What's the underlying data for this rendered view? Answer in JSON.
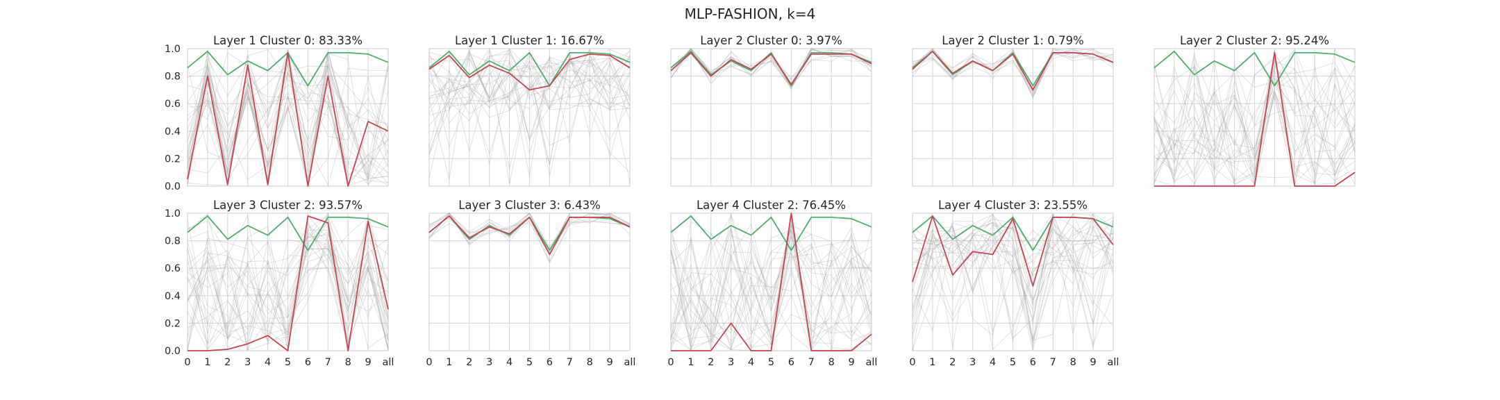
{
  "suptitle": "MLP-FASHION, k=4",
  "colors": {
    "reference": "#4caf6a",
    "cluster_mean": "#c84450",
    "samples": "#9a9a9a",
    "grid": "#d9d9d9",
    "frame": "#cccccc"
  },
  "chart_data": [
    {
      "type": "line",
      "title": "Layer 1 Cluster 0: 83.33%",
      "x": [
        "0",
        "1",
        "2",
        "3",
        "4",
        "5",
        "6",
        "7",
        "8",
        "9",
        "all"
      ],
      "ylim": [
        0,
        1
      ],
      "yticks": [
        "0.0",
        "0.2",
        "0.4",
        "0.6",
        "0.8",
        "1.0"
      ],
      "grid": true,
      "series": [
        {
          "values": [
            0.86,
            0.98,
            0.81,
            0.91,
            0.84,
            0.97,
            0.73,
            0.97,
            0.97,
            0.96,
            0.9
          ]
        },
        {
          "values": [
            0.05,
            0.8,
            0.01,
            0.88,
            0.01,
            0.97,
            0.0,
            0.8,
            0.0,
            0.47,
            0.4
          ]
        }
      ]
    },
    {
      "type": "line",
      "title": "Layer 1 Cluster 1: 16.67%",
      "x": [
        "0",
        "1",
        "2",
        "3",
        "4",
        "5",
        "6",
        "7",
        "8",
        "9",
        "all"
      ],
      "ylim": [
        0,
        1
      ],
      "yticks": [],
      "grid": true,
      "series": [
        {
          "values": [
            0.86,
            0.98,
            0.81,
            0.91,
            0.84,
            0.97,
            0.73,
            0.97,
            0.97,
            0.96,
            0.9
          ]
        },
        {
          "values": [
            0.85,
            0.95,
            0.79,
            0.88,
            0.82,
            0.7,
            0.73,
            0.92,
            0.96,
            0.95,
            0.86
          ]
        }
      ]
    },
    {
      "type": "line",
      "title": "Layer 2 Cluster 0: 3.97%",
      "x": [
        "0",
        "1",
        "2",
        "3",
        "4",
        "5",
        "6",
        "7",
        "8",
        "9",
        "all"
      ],
      "ylim": [
        0,
        1
      ],
      "yticks": [],
      "grid": true,
      "series": [
        {
          "values": [
            0.86,
            0.98,
            0.81,
            0.91,
            0.84,
            0.97,
            0.73,
            0.97,
            0.97,
            0.96,
            0.9
          ]
        },
        {
          "values": [
            0.84,
            0.97,
            0.8,
            0.92,
            0.85,
            0.96,
            0.74,
            0.96,
            0.96,
            0.96,
            0.89
          ]
        }
      ]
    },
    {
      "type": "line",
      "title": "Layer 2 Cluster 1: 0.79%",
      "x": [
        "0",
        "1",
        "2",
        "3",
        "4",
        "5",
        "6",
        "7",
        "8",
        "9",
        "all"
      ],
      "ylim": [
        0,
        1
      ],
      "yticks": [],
      "grid": true,
      "series": [
        {
          "values": [
            0.86,
            0.98,
            0.81,
            0.91,
            0.84,
            0.97,
            0.73,
            0.97,
            0.97,
            0.96,
            0.9
          ]
        },
        {
          "values": [
            0.85,
            0.98,
            0.82,
            0.91,
            0.84,
            0.96,
            0.7,
            0.97,
            0.97,
            0.96,
            0.9
          ]
        }
      ]
    },
    {
      "type": "line",
      "title": "Layer 2 Cluster 2: 95.24%",
      "x": [
        "0",
        "1",
        "2",
        "3",
        "4",
        "5",
        "6",
        "7",
        "8",
        "9",
        "all"
      ],
      "ylim": [
        0,
        1
      ],
      "yticks": [],
      "grid": true,
      "series": [
        {
          "values": [
            0.86,
            0.98,
            0.81,
            0.91,
            0.84,
            0.97,
            0.73,
            0.97,
            0.97,
            0.96,
            0.9
          ]
        },
        {
          "values": [
            0.0,
            0.0,
            0.0,
            0.0,
            0.0,
            0.0,
            0.97,
            0.0,
            0.0,
            0.0,
            0.1
          ]
        }
      ]
    },
    {
      "type": "line",
      "title": "Layer 3 Cluster 2: 93.57%",
      "x": [
        "0",
        "1",
        "2",
        "3",
        "4",
        "5",
        "6",
        "7",
        "8",
        "9",
        "all"
      ],
      "ylim": [
        0,
        1
      ],
      "yticks": [
        "0.0",
        "0.2",
        "0.4",
        "0.6",
        "0.8",
        "1.0"
      ],
      "grid": true,
      "series": [
        {
          "values": [
            0.86,
            0.98,
            0.81,
            0.91,
            0.84,
            0.97,
            0.73,
            0.97,
            0.97,
            0.96,
            0.9
          ]
        },
        {
          "values": [
            0.0,
            0.0,
            0.01,
            0.05,
            0.11,
            0.0,
            0.98,
            0.93,
            0.0,
            0.94,
            0.3
          ]
        }
      ]
    },
    {
      "type": "line",
      "title": "Layer 3 Cluster 3: 6.43%",
      "x": [
        "0",
        "1",
        "2",
        "3",
        "4",
        "5",
        "6",
        "7",
        "8",
        "9",
        "all"
      ],
      "ylim": [
        0,
        1
      ],
      "yticks": [],
      "grid": true,
      "series": [
        {
          "values": [
            0.86,
            0.98,
            0.81,
            0.91,
            0.84,
            0.97,
            0.73,
            0.97,
            0.97,
            0.96,
            0.9
          ]
        },
        {
          "values": [
            0.86,
            0.98,
            0.82,
            0.9,
            0.85,
            0.97,
            0.7,
            0.97,
            0.97,
            0.97,
            0.9
          ]
        }
      ]
    },
    {
      "type": "line",
      "title": "Layer 4 Cluster 2: 76.45%",
      "x": [
        "0",
        "1",
        "2",
        "3",
        "4",
        "5",
        "6",
        "7",
        "8",
        "9",
        "all"
      ],
      "ylim": [
        0,
        1
      ],
      "yticks": [],
      "grid": true,
      "series": [
        {
          "values": [
            0.86,
            0.98,
            0.81,
            0.91,
            0.84,
            0.97,
            0.73,
            0.97,
            0.97,
            0.96,
            0.9
          ]
        },
        {
          "values": [
            0.0,
            0.0,
            0.0,
            0.2,
            0.0,
            0.0,
            1.0,
            0.0,
            0.0,
            0.0,
            0.12
          ]
        }
      ]
    },
    {
      "type": "line",
      "title": "Layer 4 Cluster 3: 23.55%",
      "x": [
        "0",
        "1",
        "2",
        "3",
        "4",
        "5",
        "6",
        "7",
        "8",
        "9",
        "all"
      ],
      "ylim": [
        0,
        1
      ],
      "yticks": [],
      "grid": true,
      "series": [
        {
          "values": [
            0.86,
            0.98,
            0.81,
            0.91,
            0.84,
            0.97,
            0.73,
            0.97,
            0.97,
            0.96,
            0.9
          ]
        },
        {
          "values": [
            0.5,
            0.98,
            0.55,
            0.72,
            0.7,
            0.96,
            0.47,
            0.97,
            0.97,
            0.96,
            0.77
          ]
        }
      ]
    }
  ]
}
